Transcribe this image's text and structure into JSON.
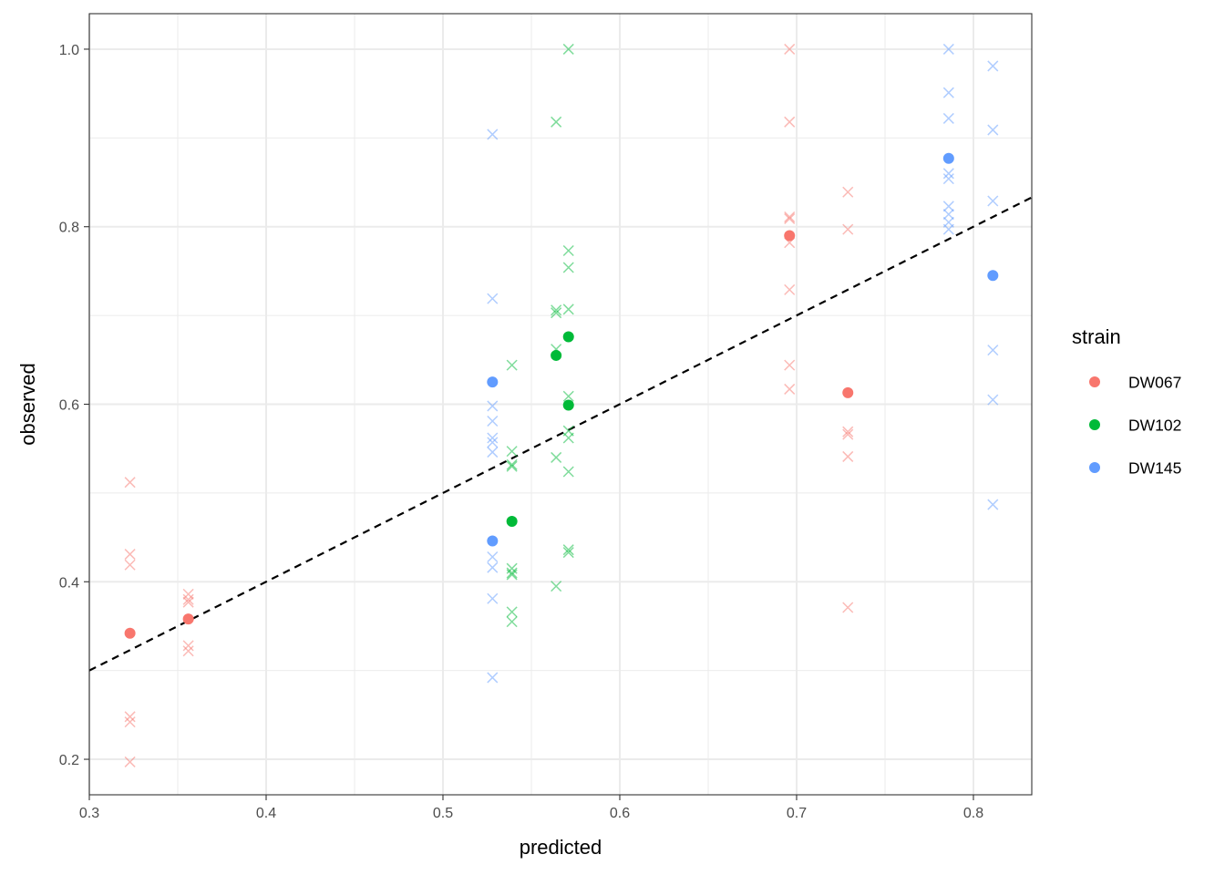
{
  "chart_data": {
    "type": "scatter",
    "xlabel": "predicted",
    "ylabel": "observed",
    "xlim": [
      0.3,
      0.833
    ],
    "ylim": [
      0.16,
      1.04
    ],
    "x_ticks": [
      "0.3",
      "0.4",
      "0.5",
      "0.6",
      "0.7",
      "0.8"
    ],
    "y_ticks": [
      "0.2",
      "0.4",
      "0.6",
      "0.8",
      "1.0"
    ],
    "grid": true,
    "reference_line": {
      "type": "identity",
      "style": "dashed",
      "color": "#000000"
    },
    "legend": {
      "title": "strain",
      "position": "right",
      "entries": [
        {
          "name": "DW067",
          "color": "#F8766D"
        },
        {
          "name": "DW102",
          "color": "#00BA38"
        },
        {
          "name": "DW145",
          "color": "#619CFF"
        }
      ]
    },
    "series": [
      {
        "name": "DW067",
        "color": "#F8766D",
        "means": [
          {
            "x": 0.323,
            "y": 0.342
          },
          {
            "x": 0.356,
            "y": 0.358
          },
          {
            "x": 0.696,
            "y": 0.79
          },
          {
            "x": 0.729,
            "y": 0.613
          }
        ],
        "replicates": [
          {
            "x": 0.323,
            "y": 0.512
          },
          {
            "x": 0.323,
            "y": 0.431
          },
          {
            "x": 0.323,
            "y": 0.419
          },
          {
            "x": 0.323,
            "y": 0.248
          },
          {
            "x": 0.323,
            "y": 0.242
          },
          {
            "x": 0.323,
            "y": 0.197
          },
          {
            "x": 0.356,
            "y": 0.386
          },
          {
            "x": 0.356,
            "y": 0.38
          },
          {
            "x": 0.356,
            "y": 0.377
          },
          {
            "x": 0.356,
            "y": 0.328
          },
          {
            "x": 0.356,
            "y": 0.322
          },
          {
            "x": 0.696,
            "y": 1.0
          },
          {
            "x": 0.696,
            "y": 0.918
          },
          {
            "x": 0.696,
            "y": 0.811
          },
          {
            "x": 0.696,
            "y": 0.809
          },
          {
            "x": 0.696,
            "y": 0.782
          },
          {
            "x": 0.696,
            "y": 0.729
          },
          {
            "x": 0.696,
            "y": 0.644
          },
          {
            "x": 0.696,
            "y": 0.617
          },
          {
            "x": 0.729,
            "y": 0.839
          },
          {
            "x": 0.729,
            "y": 0.797
          },
          {
            "x": 0.729,
            "y": 0.569
          },
          {
            "x": 0.729,
            "y": 0.566
          },
          {
            "x": 0.729,
            "y": 0.541
          },
          {
            "x": 0.729,
            "y": 0.371
          }
        ]
      },
      {
        "name": "DW102",
        "color": "#00BA38",
        "means": [
          {
            "x": 0.539,
            "y": 0.468
          },
          {
            "x": 0.564,
            "y": 0.655
          },
          {
            "x": 0.571,
            "y": 0.676
          },
          {
            "x": 0.571,
            "y": 0.599
          }
        ],
        "replicates": [
          {
            "x": 0.539,
            "y": 0.644
          },
          {
            "x": 0.539,
            "y": 0.547
          },
          {
            "x": 0.539,
            "y": 0.532
          },
          {
            "x": 0.539,
            "y": 0.53
          },
          {
            "x": 0.539,
            "y": 0.415
          },
          {
            "x": 0.539,
            "y": 0.41
          },
          {
            "x": 0.539,
            "y": 0.408
          },
          {
            "x": 0.539,
            "y": 0.366
          },
          {
            "x": 0.539,
            "y": 0.355
          },
          {
            "x": 0.564,
            "y": 0.918
          },
          {
            "x": 0.564,
            "y": 0.706
          },
          {
            "x": 0.564,
            "y": 0.703
          },
          {
            "x": 0.564,
            "y": 0.662
          },
          {
            "x": 0.564,
            "y": 0.54
          },
          {
            "x": 0.564,
            "y": 0.395
          },
          {
            "x": 0.571,
            "y": 1.0
          },
          {
            "x": 0.571,
            "y": 0.773
          },
          {
            "x": 0.571,
            "y": 0.754
          },
          {
            "x": 0.571,
            "y": 0.707
          },
          {
            "x": 0.571,
            "y": 0.609
          },
          {
            "x": 0.571,
            "y": 0.57
          },
          {
            "x": 0.571,
            "y": 0.562
          },
          {
            "x": 0.571,
            "y": 0.524
          },
          {
            "x": 0.571,
            "y": 0.436
          },
          {
            "x": 0.571,
            "y": 0.433
          }
        ]
      },
      {
        "name": "DW145",
        "color": "#619CFF",
        "means": [
          {
            "x": 0.528,
            "y": 0.625
          },
          {
            "x": 0.528,
            "y": 0.446
          },
          {
            "x": 0.786,
            "y": 0.877
          },
          {
            "x": 0.811,
            "y": 0.745
          }
        ],
        "replicates": [
          {
            "x": 0.528,
            "y": 0.904
          },
          {
            "x": 0.528,
            "y": 0.719
          },
          {
            "x": 0.528,
            "y": 0.598
          },
          {
            "x": 0.528,
            "y": 0.581
          },
          {
            "x": 0.528,
            "y": 0.562
          },
          {
            "x": 0.528,
            "y": 0.557
          },
          {
            "x": 0.528,
            "y": 0.546
          },
          {
            "x": 0.528,
            "y": 0.428
          },
          {
            "x": 0.528,
            "y": 0.416
          },
          {
            "x": 0.528,
            "y": 0.381
          },
          {
            "x": 0.528,
            "y": 0.292
          },
          {
            "x": 0.786,
            "y": 1.0
          },
          {
            "x": 0.786,
            "y": 0.951
          },
          {
            "x": 0.786,
            "y": 0.922
          },
          {
            "x": 0.786,
            "y": 0.86
          },
          {
            "x": 0.786,
            "y": 0.854
          },
          {
            "x": 0.786,
            "y": 0.823
          },
          {
            "x": 0.786,
            "y": 0.814
          },
          {
            "x": 0.786,
            "y": 0.805
          },
          {
            "x": 0.786,
            "y": 0.797
          },
          {
            "x": 0.811,
            "y": 0.981
          },
          {
            "x": 0.811,
            "y": 0.909
          },
          {
            "x": 0.811,
            "y": 0.829
          },
          {
            "x": 0.811,
            "y": 0.661
          },
          {
            "x": 0.811,
            "y": 0.605
          },
          {
            "x": 0.811,
            "y": 0.487
          }
        ]
      }
    ]
  }
}
